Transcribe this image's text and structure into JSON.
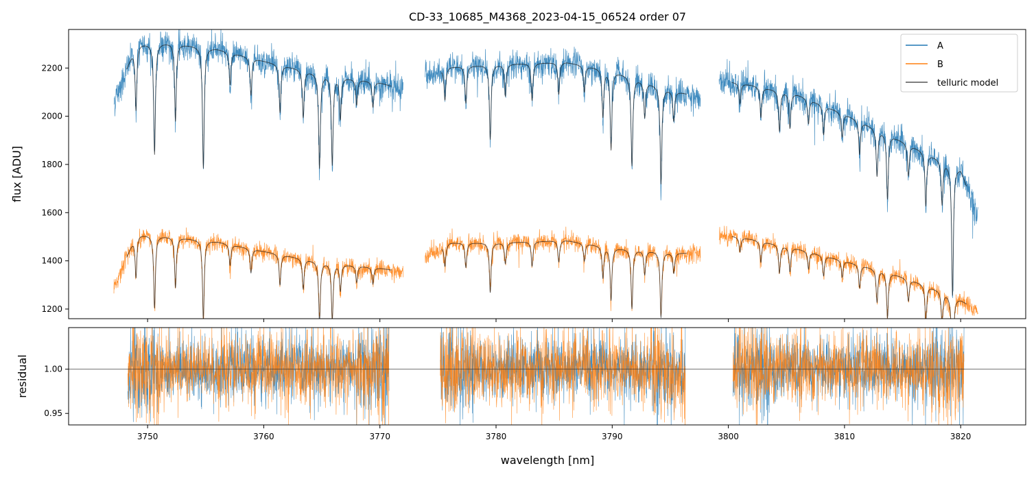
{
  "chart_data": [
    {
      "type": "line",
      "panel": "top",
      "title": "CD-33_10685_M4368_2023-04-15_06524  order 07",
      "xlabel": "",
      "ylabel": "flux [ADU]",
      "xlim": [
        3743.2,
        3825.6
      ],
      "ylim": [
        1160,
        2360
      ],
      "yticks": [
        1200,
        1400,
        1600,
        1800,
        2000,
        2200
      ],
      "ytick_labels": [
        "1200",
        "1400",
        "1600",
        "1800",
        "2000",
        "2200"
      ],
      "xticks": [
        3750,
        3760,
        3770,
        3780,
        3790,
        3800,
        3810,
        3820
      ],
      "legend": {
        "placement": "top-right",
        "entries": [
          {
            "label": "A",
            "color": "#1f77b4"
          },
          {
            "label": "B",
            "color": "#ff7f0e"
          },
          {
            "label": "telluric model",
            "color": "#555555"
          }
        ]
      },
      "segments": [
        [
          3747.1,
          3772.0
        ],
        [
          3773.9,
          3797.6
        ],
        [
          3799.2,
          3821.5
        ]
      ],
      "model_segments": [
        [
          3748.2,
          3771.0
        ],
        [
          3775.3,
          3796.4
        ],
        [
          3800.3,
          3820.5
        ]
      ],
      "series": [
        {
          "name": "A",
          "color": "#1f77b4",
          "continuum_x": [
            3747.1,
            3749.0,
            3752.0,
            3756.0,
            3760.0,
            3765.0,
            3770.0,
            3772.0,
            3774.0,
            3776.0,
            3780.0,
            3786.0,
            3790.0,
            3795.0,
            3797.6,
            3799.2,
            3802.0,
            3806.0,
            3810.0,
            3814.0,
            3817.0,
            3820.0,
            3821.5
          ],
          "continuum_y": [
            2060,
            2300,
            2305,
            2280,
            2230,
            2175,
            2140,
            2110,
            2170,
            2205,
            2215,
            2225,
            2190,
            2110,
            2080,
            2150,
            2130,
            2090,
            2010,
            1920,
            1850,
            1780,
            1580
          ],
          "noise": 30
        },
        {
          "name": "B",
          "color": "#ff7f0e",
          "continuum_x": [
            3747.1,
            3749.0,
            3752.0,
            3756.0,
            3760.0,
            3765.0,
            3770.0,
            3772.0,
            3774.0,
            3776.0,
            3780.0,
            3786.0,
            3790.0,
            3795.0,
            3797.6,
            3799.2,
            3802.0,
            3806.0,
            3810.0,
            3814.0,
            3817.0,
            3820.0,
            3821.5
          ],
          "continuum_y": [
            1290,
            1510,
            1500,
            1480,
            1440,
            1395,
            1370,
            1355,
            1420,
            1475,
            1475,
            1485,
            1455,
            1435,
            1430,
            1510,
            1490,
            1450,
            1400,
            1350,
            1300,
            1240,
            1190
          ],
          "noise": 18
        }
      ],
      "telluric_lines": [
        {
          "x": 3749.0,
          "depth": 0.12
        },
        {
          "x": 3750.6,
          "depth": 0.2
        },
        {
          "x": 3752.4,
          "depth": 0.14
        },
        {
          "x": 3754.8,
          "depth": 0.22
        },
        {
          "x": 3757.1,
          "depth": 0.06
        },
        {
          "x": 3758.9,
          "depth": 0.07
        },
        {
          "x": 3761.4,
          "depth": 0.09
        },
        {
          "x": 3763.4,
          "depth": 0.09
        },
        {
          "x": 3764.8,
          "depth": 0.18
        },
        {
          "x": 3765.9,
          "depth": 0.17
        },
        {
          "x": 3766.6,
          "depth": 0.08
        },
        {
          "x": 3768.0,
          "depth": 0.05
        },
        {
          "x": 3769.4,
          "depth": 0.05
        },
        {
          "x": 3775.6,
          "depth": 0.06
        },
        {
          "x": 3777.4,
          "depth": 0.07
        },
        {
          "x": 3779.5,
          "depth": 0.14
        },
        {
          "x": 3780.8,
          "depth": 0.06
        },
        {
          "x": 3783.1,
          "depth": 0.07
        },
        {
          "x": 3785.4,
          "depth": 0.06
        },
        {
          "x": 3787.6,
          "depth": 0.05
        },
        {
          "x": 3789.2,
          "depth": 0.09
        },
        {
          "x": 3789.9,
          "depth": 0.15
        },
        {
          "x": 3791.7,
          "depth": 0.17
        },
        {
          "x": 3792.8,
          "depth": 0.07
        },
        {
          "x": 3794.2,
          "depth": 0.19
        },
        {
          "x": 3795.3,
          "depth": 0.06
        },
        {
          "x": 3801.0,
          "depth": 0.04
        },
        {
          "x": 3802.8,
          "depth": 0.06
        },
        {
          "x": 3804.4,
          "depth": 0.08
        },
        {
          "x": 3805.3,
          "depth": 0.07
        },
        {
          "x": 3806.9,
          "depth": 0.05
        },
        {
          "x": 3808.2,
          "depth": 0.06
        },
        {
          "x": 3809.8,
          "depth": 0.05
        },
        {
          "x": 3811.3,
          "depth": 0.07
        },
        {
          "x": 3812.8,
          "depth": 0.1
        },
        {
          "x": 3813.7,
          "depth": 0.14
        },
        {
          "x": 3815.5,
          "depth": 0.07
        },
        {
          "x": 3817.0,
          "depth": 0.12
        },
        {
          "x": 3818.4,
          "depth": 0.1
        },
        {
          "x": 3819.3,
          "depth": 0.3
        }
      ]
    },
    {
      "type": "line",
      "panel": "bottom",
      "xlabel": "wavelength [nm]",
      "ylabel": "residual",
      "xlim": [
        3743.2,
        3825.6
      ],
      "ylim": [
        0.937,
        1.047
      ],
      "yticks": [
        0.95,
        1.0
      ],
      "ytick_labels": [
        "0.95",
        "1.00"
      ],
      "xticks": [
        3750,
        3760,
        3770,
        3780,
        3790,
        3800,
        3810,
        3820
      ],
      "xtick_labels": [
        "3750",
        "3760",
        "3770",
        "3780",
        "3790",
        "3800",
        "3810",
        "3820"
      ],
      "reference_line": 1.0,
      "segments": [
        [
          3748.3,
          3770.8
        ],
        [
          3775.2,
          3796.3
        ],
        [
          3800.4,
          3820.3
        ]
      ],
      "series": [
        {
          "name": "A",
          "color": "#1f77b4",
          "noise": 0.018
        },
        {
          "name": "B",
          "color": "#ff7f0e",
          "noise": 0.02
        }
      ]
    }
  ]
}
